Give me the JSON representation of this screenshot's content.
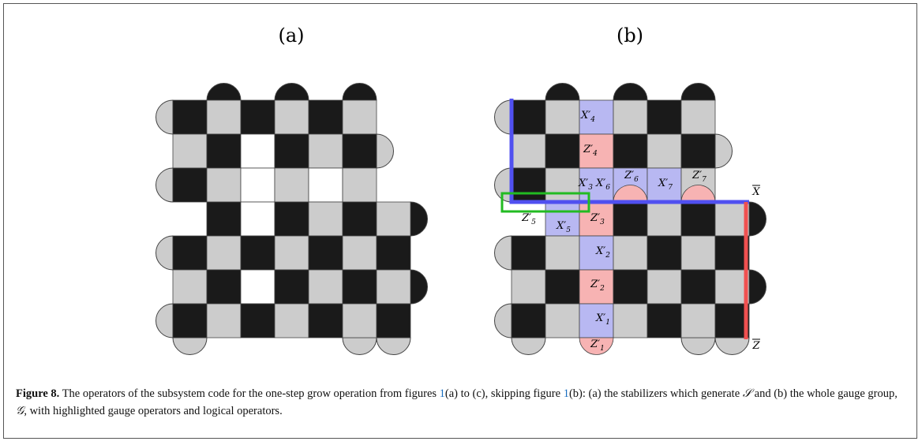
{
  "panels": [
    {
      "label": "(a)"
    },
    {
      "label": "(b)"
    }
  ],
  "operators": [
    {
      "op": "X′",
      "sub": "4"
    },
    {
      "op": "Z′",
      "sub": "4"
    },
    {
      "op": "X′",
      "sub": "3"
    },
    {
      "op": "X′",
      "sub": "6"
    },
    {
      "op": "Z′",
      "sub": "6"
    },
    {
      "op": "X′",
      "sub": "7"
    },
    {
      "op": "Z′",
      "sub": "7"
    },
    {
      "op": "Z′",
      "sub": "5"
    },
    {
      "op": "X′",
      "sub": "5"
    },
    {
      "op": "Z′",
      "sub": "3"
    },
    {
      "op": "X′",
      "sub": "2"
    },
    {
      "op": "Z′",
      "sub": "2"
    },
    {
      "op": "X′",
      "sub": "1"
    },
    {
      "op": "Z′",
      "sub": "1"
    }
  ],
  "logical": {
    "x": "X",
    "z": "Z"
  },
  "caption": {
    "label": "Figure 8.",
    "parts": [
      "The operators of the subsystem code for the one-step grow operation from figures ",
      "1",
      "(a) to (c), skipping figure ",
      "1",
      "(b): (a) the stabilizers which generate ",
      "𝒮",
      " and (b) the whole gauge group, ",
      "𝒢",
      ", with highlighted gauge operators and logical operators."
    ]
  }
}
